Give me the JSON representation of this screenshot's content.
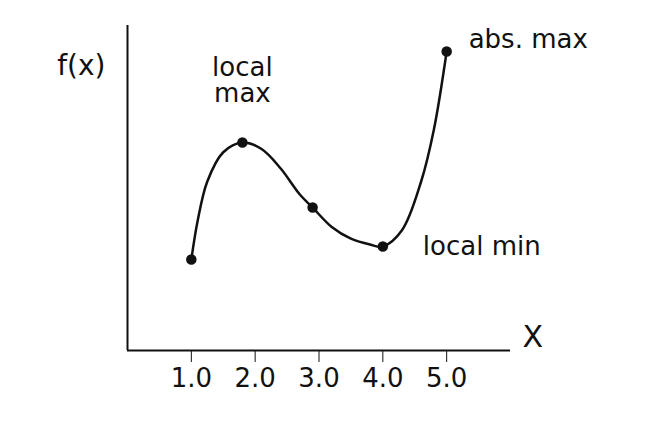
{
  "chart_data": {
    "type": "line",
    "x_label": "X",
    "y_label": "f(x)",
    "x": [
      1,
      1.1,
      1.25,
      1.5,
      1.8,
      2.1,
      2.4,
      2.7,
      2.9,
      3.2,
      3.5,
      3.8,
      4,
      4.3,
      4.6,
      4.8,
      5
    ],
    "values": [
      1.4,
      2.0,
      2.6,
      3.05,
      3.2,
      3.1,
      2.8,
      2.4,
      2.2,
      1.9,
      1.72,
      1.63,
      1.6,
      1.85,
      2.6,
      3.4,
      4.6
    ],
    "color": "#111111",
    "marked_points": {
      "x": [
        1,
        1.8,
        2.9,
        4,
        5
      ],
      "y": [
        1.4,
        3.2,
        2.2,
        1.6,
        4.6
      ]
    },
    "annotations": [
      {
        "text": "local max",
        "x": 1.8,
        "y": 3.2
      },
      {
        "text": "local min",
        "x": 4,
        "y": 1.6
      },
      {
        "text": "abs. max",
        "x": 5,
        "y": 4.6
      }
    ],
    "xlim": [
      0,
      6
    ],
    "ylim": [
      0,
      5
    ],
    "xticks": [
      1,
      2,
      3,
      4,
      5
    ],
    "yticks": [],
    "tick_labels": "x"
  }
}
